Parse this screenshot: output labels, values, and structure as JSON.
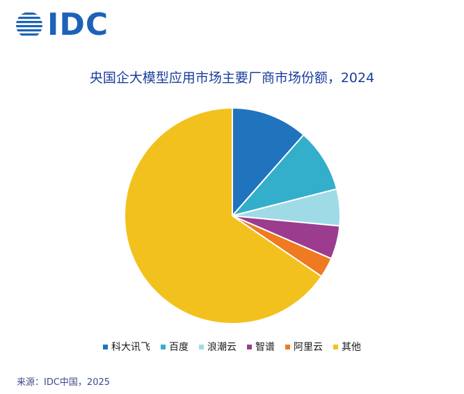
{
  "logo": {
    "text": "IDC"
  },
  "chart_data": {
    "type": "pie",
    "title": "央国企大模型应用市场主要厂商市场份额，2024",
    "series": [
      {
        "name": "科大讯飞",
        "value": 11.5,
        "color": "#1f74bd"
      },
      {
        "name": "百度",
        "value": 9.5,
        "color": "#33aecb"
      },
      {
        "name": "浪潮云",
        "value": 5.5,
        "color": "#9fdbe6"
      },
      {
        "name": "智谱",
        "value": 5.0,
        "color": "#9b3c8f"
      },
      {
        "name": "阿里云",
        "value": 3.0,
        "color": "#ef7a21"
      },
      {
        "name": "其他",
        "value": 65.5,
        "color": "#f3c11e"
      }
    ],
    "legend_position": "bottom"
  },
  "source": "来源：IDC中国，2025"
}
